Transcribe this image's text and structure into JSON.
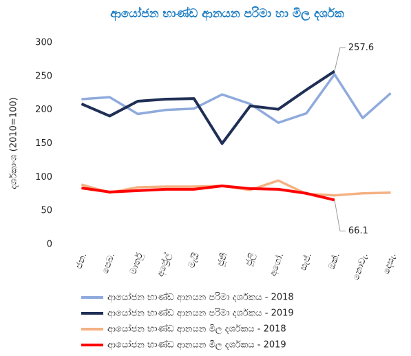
{
  "chart_data": {
    "type": "line",
    "title": "ආයෝජන භාණ්ඩ ආනයන පරිමා හා මිල දර්ශක",
    "y_label": "දර්ශකාංශ (2010=100)",
    "categories": [
      "ජන.",
      "පෙබ.",
      "මාර්තු",
      "අප්‍රේල්",
      "මැයි",
      "ජූනි",
      "ජූලි",
      "අගෝ.",
      "සැප්.",
      "ඔක්.",
      "නොවැ.",
      "දෙසැ."
    ],
    "series": [
      {
        "name": "ආයෝජන භාණ්ඩ ආනයන පරිමා දර්ශකය - 2018",
        "color": "#8faadc",
        "values": [
          216,
          219,
          194,
          200,
          202,
          223,
          209,
          181,
          195,
          253,
          188,
          225
        ]
      },
      {
        "name": "ආයෝජන භාණ්ඩ ආනයන පරිමා දර්ශකය - 2019",
        "color": "#1f2f55",
        "values": [
          209,
          191,
          213,
          216,
          217,
          150,
          206,
          201,
          230,
          257.6,
          null,
          null
        ]
      },
      {
        "name": "ආයෝජන භාණ්ඩ ආනයන මිල දර්ශකය - 2018",
        "color": "#f4b183",
        "values": [
          89,
          77,
          85,
          86,
          86,
          87,
          81,
          95,
          75,
          73,
          76,
          77
        ]
      },
      {
        "name": "ආයෝජන භාණ්ඩ ආනයන මිල දර්ශකය - 2019",
        "color": "#ff0000",
        "values": [
          84,
          78,
          80,
          82,
          82,
          87,
          83,
          82,
          76,
          66.1,
          null,
          null
        ]
      }
    ],
    "ylim": [
      0,
      300
    ],
    "yticks": [
      0,
      50,
      100,
      150,
      200,
      250,
      300
    ],
    "grid": false
  }
}
